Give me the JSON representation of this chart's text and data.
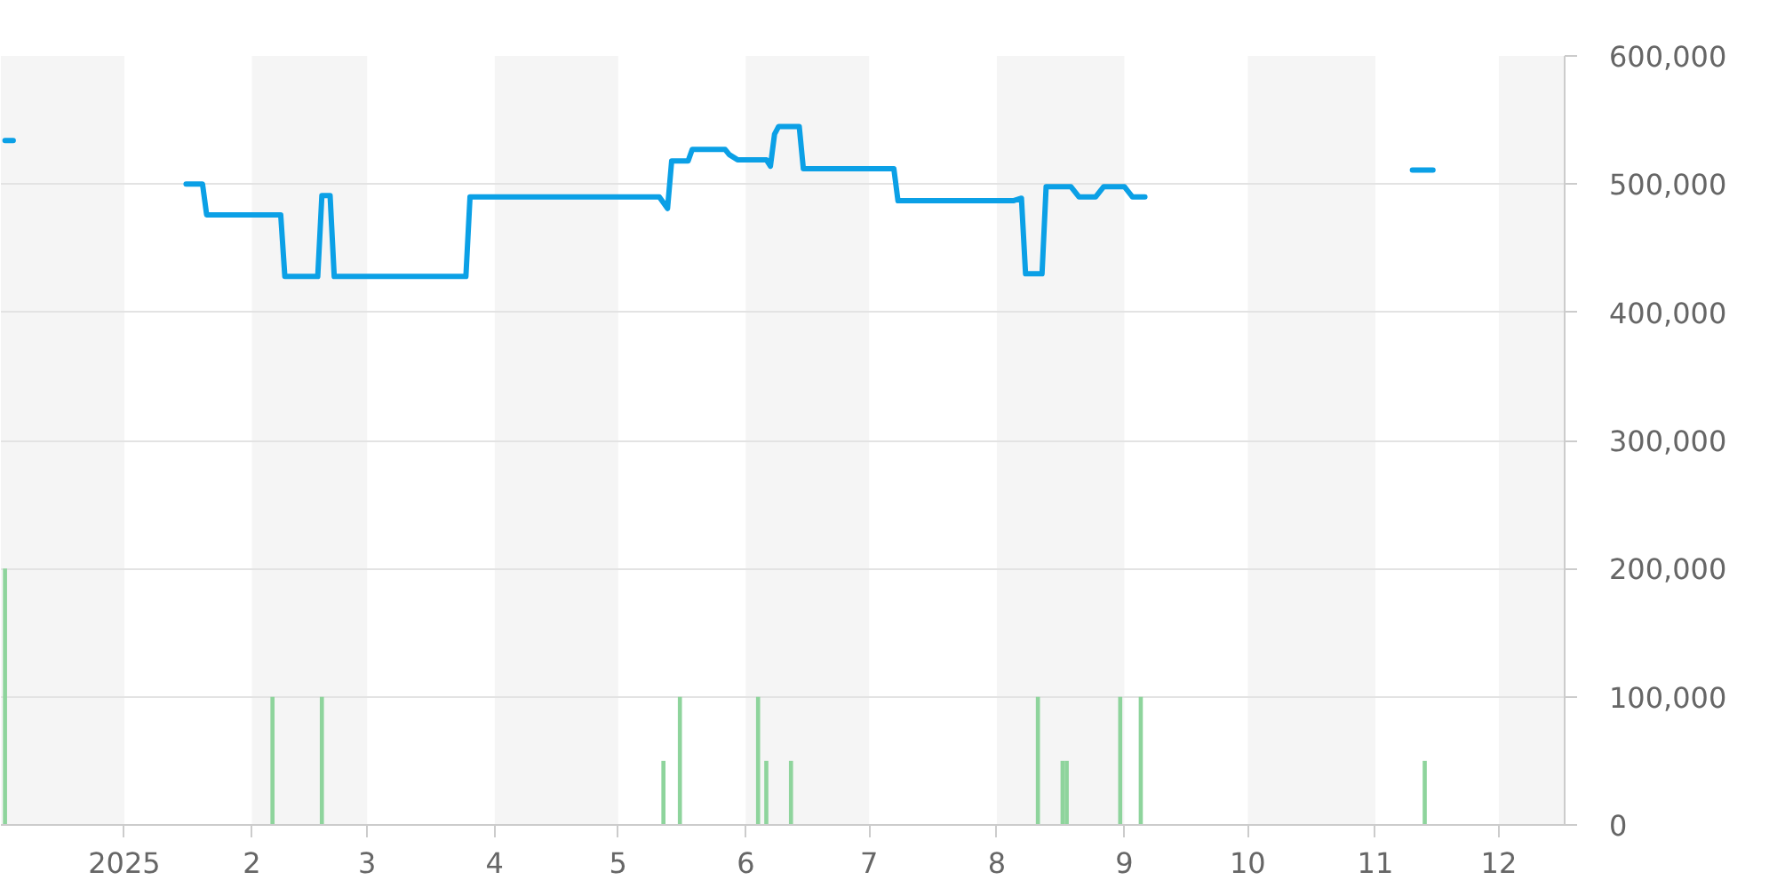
{
  "chart_data": {
    "type": "line",
    "xlim": [
      "2024-12-02",
      "2025-12-17"
    ],
    "xticks": [
      {
        "value": "2025-01-01",
        "label": "2025"
      },
      {
        "value": "2025-02-01",
        "label": "2"
      },
      {
        "value": "2025-03-01",
        "label": "3"
      },
      {
        "value": "2025-04-01",
        "label": "4"
      },
      {
        "value": "2025-05-01",
        "label": "5"
      },
      {
        "value": "2025-06-01",
        "label": "6"
      },
      {
        "value": "2025-07-01",
        "label": "7"
      },
      {
        "value": "2025-08-01",
        "label": "8"
      },
      {
        "value": "2025-09-01",
        "label": "9"
      },
      {
        "value": "2025-10-01",
        "label": "10"
      },
      {
        "value": "2025-11-01",
        "label": "11"
      },
      {
        "value": "2025-12-01",
        "label": "12"
      }
    ],
    "ylim": [
      0,
      600000
    ],
    "yticks": [
      {
        "value": 0,
        "label": "0"
      },
      {
        "value": 100000,
        "label": "100,000"
      },
      {
        "value": 200000,
        "label": "200,000"
      },
      {
        "value": 300000,
        "label": "300,000"
      },
      {
        "value": 400000,
        "label": "400,000"
      },
      {
        "value": 500000,
        "label": "500,000"
      },
      {
        "value": 600000,
        "label": "600,000"
      }
    ],
    "grid": "y",
    "line_style": "solid",
    "bands": [
      {
        "axis": "x",
        "from": "2024-12-02",
        "to": "2025-01-01",
        "color": "#f5f5f5"
      },
      {
        "axis": "x",
        "from": "2025-02-01",
        "to": "2025-03-01",
        "color": "#f5f5f5"
      },
      {
        "axis": "x",
        "from": "2025-04-01",
        "to": "2025-05-01",
        "color": "#f5f5f5"
      },
      {
        "axis": "x",
        "from": "2025-06-01",
        "to": "2025-07-01",
        "color": "#f5f5f5"
      },
      {
        "axis": "x",
        "from": "2025-08-01",
        "to": "2025-09-01",
        "color": "#f5f5f5"
      },
      {
        "axis": "x",
        "from": "2025-10-01",
        "to": "2025-11-01",
        "color": "#f5f5f5"
      },
      {
        "axis": "x",
        "from": "2025-12-01",
        "to": "2025-12-17",
        "color": "#f5f5f5"
      }
    ],
    "series": [
      {
        "type": "bar",
        "color": "#8ed49c",
        "x": [
          "2024-12-03",
          "2025-02-06",
          "2025-02-18",
          "2025-05-12",
          "2025-05-16",
          "2025-06-04",
          "2025-06-06",
          "2025-06-12",
          "2025-08-11",
          "2025-08-17",
          "2025-08-18",
          "2025-08-31",
          "2025-09-05",
          "2025-11-13"
        ],
        "values": [
          200000,
          100000,
          100000,
          50000,
          100000,
          100000,
          50000,
          50000,
          100000,
          50000,
          50000,
          100000,
          100000,
          50000
        ]
      },
      {
        "color": "#0ba0e6",
        "x": [
          "2024-12-03",
          "2024-12-05",
          "2024-12-06",
          "2025-01-16",
          "2025-01-20",
          "2025-01-21",
          "2025-02-08",
          "2025-02-09",
          "2025-02-17",
          "2025-02-18",
          "2025-02-20",
          "2025-02-21",
          "2025-03-25",
          "2025-03-26",
          "2025-05-11",
          "2025-05-13",
          "2025-05-14",
          "2025-05-18",
          "2025-05-19",
          "2025-05-27",
          "2025-05-28",
          "2025-05-30",
          "2025-06-06",
          "2025-06-07",
          "2025-06-08",
          "2025-06-09",
          "2025-06-14",
          "2025-06-15",
          "2025-07-07",
          "2025-07-08",
          "2025-08-05",
          "2025-08-07",
          "2025-08-08",
          "2025-08-12",
          "2025-08-13",
          "2025-08-19",
          "2025-08-21",
          "2025-08-25",
          "2025-08-27",
          "2025-09-01",
          "2025-09-03",
          "2025-09-06",
          "2025-09-07",
          "2025-11-10",
          "2025-11-15"
        ],
        "values": [
          534000,
          534000,
          null,
          500000,
          500000,
          476000,
          476000,
          428000,
          428000,
          491000,
          491000,
          428000,
          428000,
          490000,
          490000,
          481000,
          518000,
          518000,
          527000,
          527000,
          523000,
          519000,
          519000,
          514000,
          539000,
          545000,
          545000,
          512000,
          512000,
          487000,
          487000,
          489000,
          430000,
          430000,
          498000,
          498000,
          490000,
          490000,
          498000,
          498000,
          490000,
          490000,
          null,
          511000,
          511000
        ]
      }
    ]
  }
}
